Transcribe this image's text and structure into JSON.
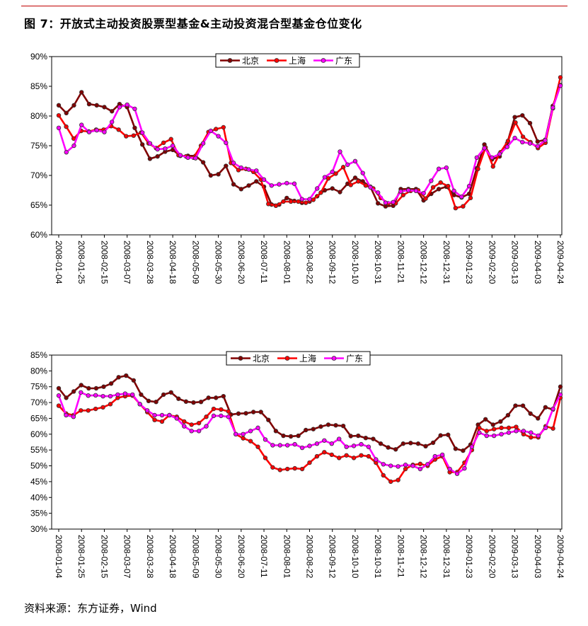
{
  "title": "图 7：开放式主动投资股票型基金&主动投资混合型基金仓位变化",
  "source": "资料来源：东方证券，Wind",
  "colors": {
    "beijing": "#800000",
    "shanghai": "#ff0000",
    "guangdong": "#ff00ff",
    "rule": "#c00000"
  },
  "chart_data": [
    {
      "type": "line",
      "title": "开放式主动投资股票型基金",
      "ylim": [
        60,
        90
      ],
      "yticks": [
        "60%",
        "65%",
        "70%",
        "75%",
        "80%",
        "85%",
        "90%"
      ],
      "xticks": [
        "2008-01-04",
        "2008-01-25",
        "2008-02-15",
        "2008-03-07",
        "2008-03-28",
        "2008-04-18",
        "2008-05-09",
        "2008-05-30",
        "2008-06-20",
        "2008-07-11",
        "2008-08-01",
        "2008-08-22",
        "2008-09-12",
        "2008-10-10",
        "2008-10-31",
        "2008-11-21",
        "2008-12-12",
        "2008-12-31",
        "2009-01-23",
        "2009-02-20",
        "2009-03-13",
        "2009-04-03",
        "2009-04-24"
      ],
      "legend_position": "top-center",
      "series": [
        {
          "name": "北京",
          "color": "#800000",
          "values": [
            81.8,
            80.5,
            81.8,
            84.0,
            82.0,
            81.8,
            81.5,
            80.8,
            82.0,
            81.5,
            78.0,
            75.2,
            72.8,
            73.2,
            74.0,
            74.3,
            73.3,
            73.3,
            73.3,
            72.2,
            70.0,
            70.2,
            71.6,
            68.5,
            67.7,
            68.3,
            69.0,
            68.1,
            65.1,
            65.1,
            66.2,
            65.7,
            65.4,
            65.6,
            66.5,
            67.5,
            67.8,
            67.2,
            68.6,
            69.6,
            69.0,
            68.1,
            65.3,
            64.8,
            64.9,
            67.7,
            67.7,
            67.7,
            65.8,
            66.9,
            67.7,
            68.1,
            66.7,
            66.3,
            66.9,
            71.2,
            75.2,
            72.7,
            73.2,
            75.4,
            79.8,
            80.1,
            78.8,
            75.7,
            76.0,
            81.7,
            85.2
          ]
        },
        {
          "name": "上海",
          "color": "#ff0000",
          "values": [
            80.1,
            78.2,
            76.2,
            77.5,
            77.4,
            77.7,
            77.7,
            78.3,
            77.7,
            76.6,
            76.7,
            77.2,
            75.4,
            74.6,
            75.5,
            76.1,
            73.4,
            73.2,
            73.0,
            75.0,
            77.3,
            77.8,
            78.1,
            72.1,
            70.9,
            71.1,
            70.6,
            69.3,
            65.2,
            64.9,
            65.6,
            65.6,
            65.6,
            65.4,
            65.9,
            67.1,
            69.5,
            70.3,
            71.4,
            68.4,
            69.0,
            68.3,
            67.8,
            66.2,
            65.3,
            65.3,
            66.7,
            67.4,
            67.5,
            66.1,
            68.0,
            68.8,
            68.2,
            64.5,
            64.8,
            66.2,
            71.1,
            74.7,
            71.5,
            73.9,
            75.8,
            78.9,
            76.5,
            75.6,
            74.6,
            75.5,
            81.3,
            86.5
          ]
        },
        {
          "name": "广东",
          "color": "#ff00ff",
          "values": [
            78.0,
            73.9,
            75.0,
            78.5,
            77.3,
            77.6,
            77.3,
            79.0,
            81.5,
            81.9,
            81.2,
            77.2,
            75.4,
            74.4,
            74.5,
            75.0,
            73.4,
            73.0,
            72.9,
            75.4,
            77.5,
            76.6,
            75.5,
            72.1,
            71.3,
            71.0,
            70.8,
            69.3,
            68.3,
            68.5,
            68.7,
            68.6,
            66.0,
            66.0,
            67.8,
            69.7,
            70.6,
            74.0,
            71.8,
            72.4,
            70.4,
            68.0,
            67.1,
            65.4,
            65.5,
            67.3,
            67.5,
            67.4,
            67.0,
            69.1,
            71.1,
            71.3,
            67.4,
            66.4,
            68.2,
            73.0,
            74.6,
            73.0,
            73.6,
            74.8,
            76.3,
            75.6,
            75.4,
            74.9,
            75.9,
            81.4,
            85.1
          ]
        }
      ]
    },
    {
      "type": "line",
      "title": "主动投资混合型基金",
      "ylim": [
        30,
        85
      ],
      "yticks": [
        "30%",
        "35%",
        "40%",
        "45%",
        "50%",
        "55%",
        "60%",
        "65%",
        "70%",
        "75%",
        "80%",
        "85%"
      ],
      "xticks": [
        "2008-01-04",
        "2008-01-25",
        "2008-02-15",
        "2008-03-07",
        "2008-03-28",
        "2008-04-18",
        "2008-05-09",
        "2008-05-30",
        "2008-06-20",
        "2008-07-11",
        "2008-08-01",
        "2008-08-22",
        "2008-09-12",
        "2008-10-10",
        "2008-10-31",
        "2008-11-21",
        "2008-12-12",
        "2008-12-31",
        "2009-01-23",
        "2009-02-20",
        "2009-03-13",
        "2009-04-03",
        "2009-04-24"
      ],
      "legend_position": "top-center",
      "series": [
        {
          "name": "北京",
          "color": "#800000",
          "values": [
            74.5,
            71.5,
            73.5,
            75.5,
            74.5,
            74.5,
            75.0,
            76.0,
            78.0,
            78.5,
            77.0,
            72.5,
            70.5,
            70.2,
            72.5,
            73.2,
            71.2,
            70.3,
            70.0,
            70.2,
            71.5,
            71.5,
            72.0,
            66.2,
            66.5,
            66.6,
            67.0,
            67.0,
            64.5,
            61.0,
            59.5,
            59.3,
            59.5,
            61.3,
            61.6,
            62.4,
            63.0,
            62.8,
            62.6,
            59.4,
            59.5,
            58.8,
            58.5,
            57.0,
            55.8,
            55.2,
            57.0,
            57.2,
            57.0,
            56.2,
            57.3,
            59.6,
            59.8,
            55.4,
            54.8,
            56.7,
            63.0,
            64.7,
            63.0,
            64.0,
            66.0,
            69.0,
            69.0,
            66.5,
            65.0,
            68.5,
            67.8,
            75.0
          ]
        },
        {
          "name": "上海",
          "color": "#ff0000",
          "values": [
            69.0,
            66.5,
            66.0,
            67.5,
            67.5,
            68.0,
            68.5,
            69.5,
            71.5,
            72.0,
            72.2,
            69.5,
            67.0,
            64.5,
            64.0,
            66.0,
            65.5,
            64.0,
            63.0,
            63.5,
            65.5,
            68.0,
            67.8,
            67.2,
            60.0,
            58.7,
            57.8,
            56.0,
            52.5,
            49.5,
            48.7,
            49.0,
            49.2,
            49.0,
            51.0,
            53.0,
            54.3,
            53.5,
            52.5,
            53.3,
            52.5,
            53.3,
            53.0,
            51.0,
            47.0,
            45.0,
            45.5,
            49.0,
            50.3,
            50.6,
            50.0,
            52.0,
            53.0,
            48.0,
            48.0,
            51.0,
            55.0,
            62.0,
            61.0,
            61.6,
            62.0,
            62.0,
            62.3,
            60.0,
            59.0,
            59.0,
            62.5,
            61.8,
            71.5
          ]
        },
        {
          "name": "广东",
          "color": "#ff00ff",
          "values": [
            72.2,
            66.0,
            65.5,
            73.2,
            72.2,
            72.3,
            72.0,
            72.0,
            72.5,
            72.8,
            72.5,
            69.5,
            67.5,
            66.0,
            66.0,
            66.0,
            65.0,
            62.5,
            61.0,
            61.0,
            62.5,
            65.8,
            65.8,
            65.5,
            60.0,
            60.0,
            61.0,
            62.0,
            58.3,
            56.5,
            56.5,
            56.5,
            56.8,
            55.7,
            56.3,
            57.0,
            58.0,
            57.0,
            58.5,
            56.0,
            56.3,
            56.8,
            56.0,
            52.0,
            50.5,
            50.0,
            49.8,
            50.3,
            50.0,
            49.0,
            50.5,
            53.0,
            53.5,
            49.0,
            47.5,
            49.2,
            56.0,
            60.5,
            59.5,
            59.5,
            60.0,
            60.5,
            61.0,
            61.0,
            60.5,
            59.5,
            62.0,
            68.0,
            72.5
          ]
        }
      ]
    }
  ]
}
